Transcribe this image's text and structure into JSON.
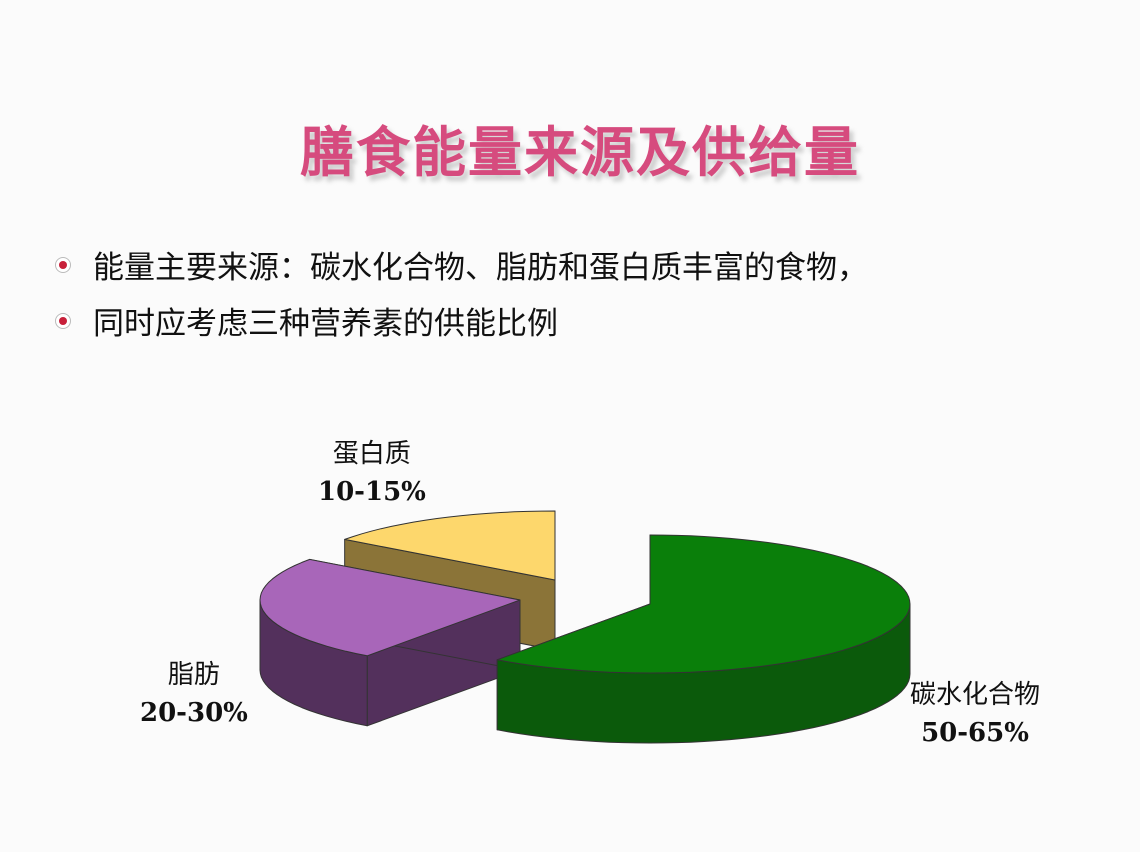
{
  "title": "膳食能量来源及供给量",
  "bullets": [
    "能量主要来源：碳水化合物、脂肪和蛋白质丰富的食物，",
    "同时应考虑三种营养素的供能比例"
  ],
  "chart_data": {
    "type": "pie",
    "style": "3d-exploded",
    "slices": [
      {
        "name": "碳水化合物",
        "label": "50-65%",
        "value": 60,
        "color": "#0a7f0a",
        "side_color": "#0b5a0b"
      },
      {
        "name": "脂肪",
        "label": "20-30%",
        "value": 25,
        "color": "#a866b9",
        "side_color": "#53305c"
      },
      {
        "name": "蛋白质",
        "label": "10-15%",
        "value": 15,
        "color": "#fdd76c",
        "side_color": "#8b7438"
      }
    ]
  }
}
